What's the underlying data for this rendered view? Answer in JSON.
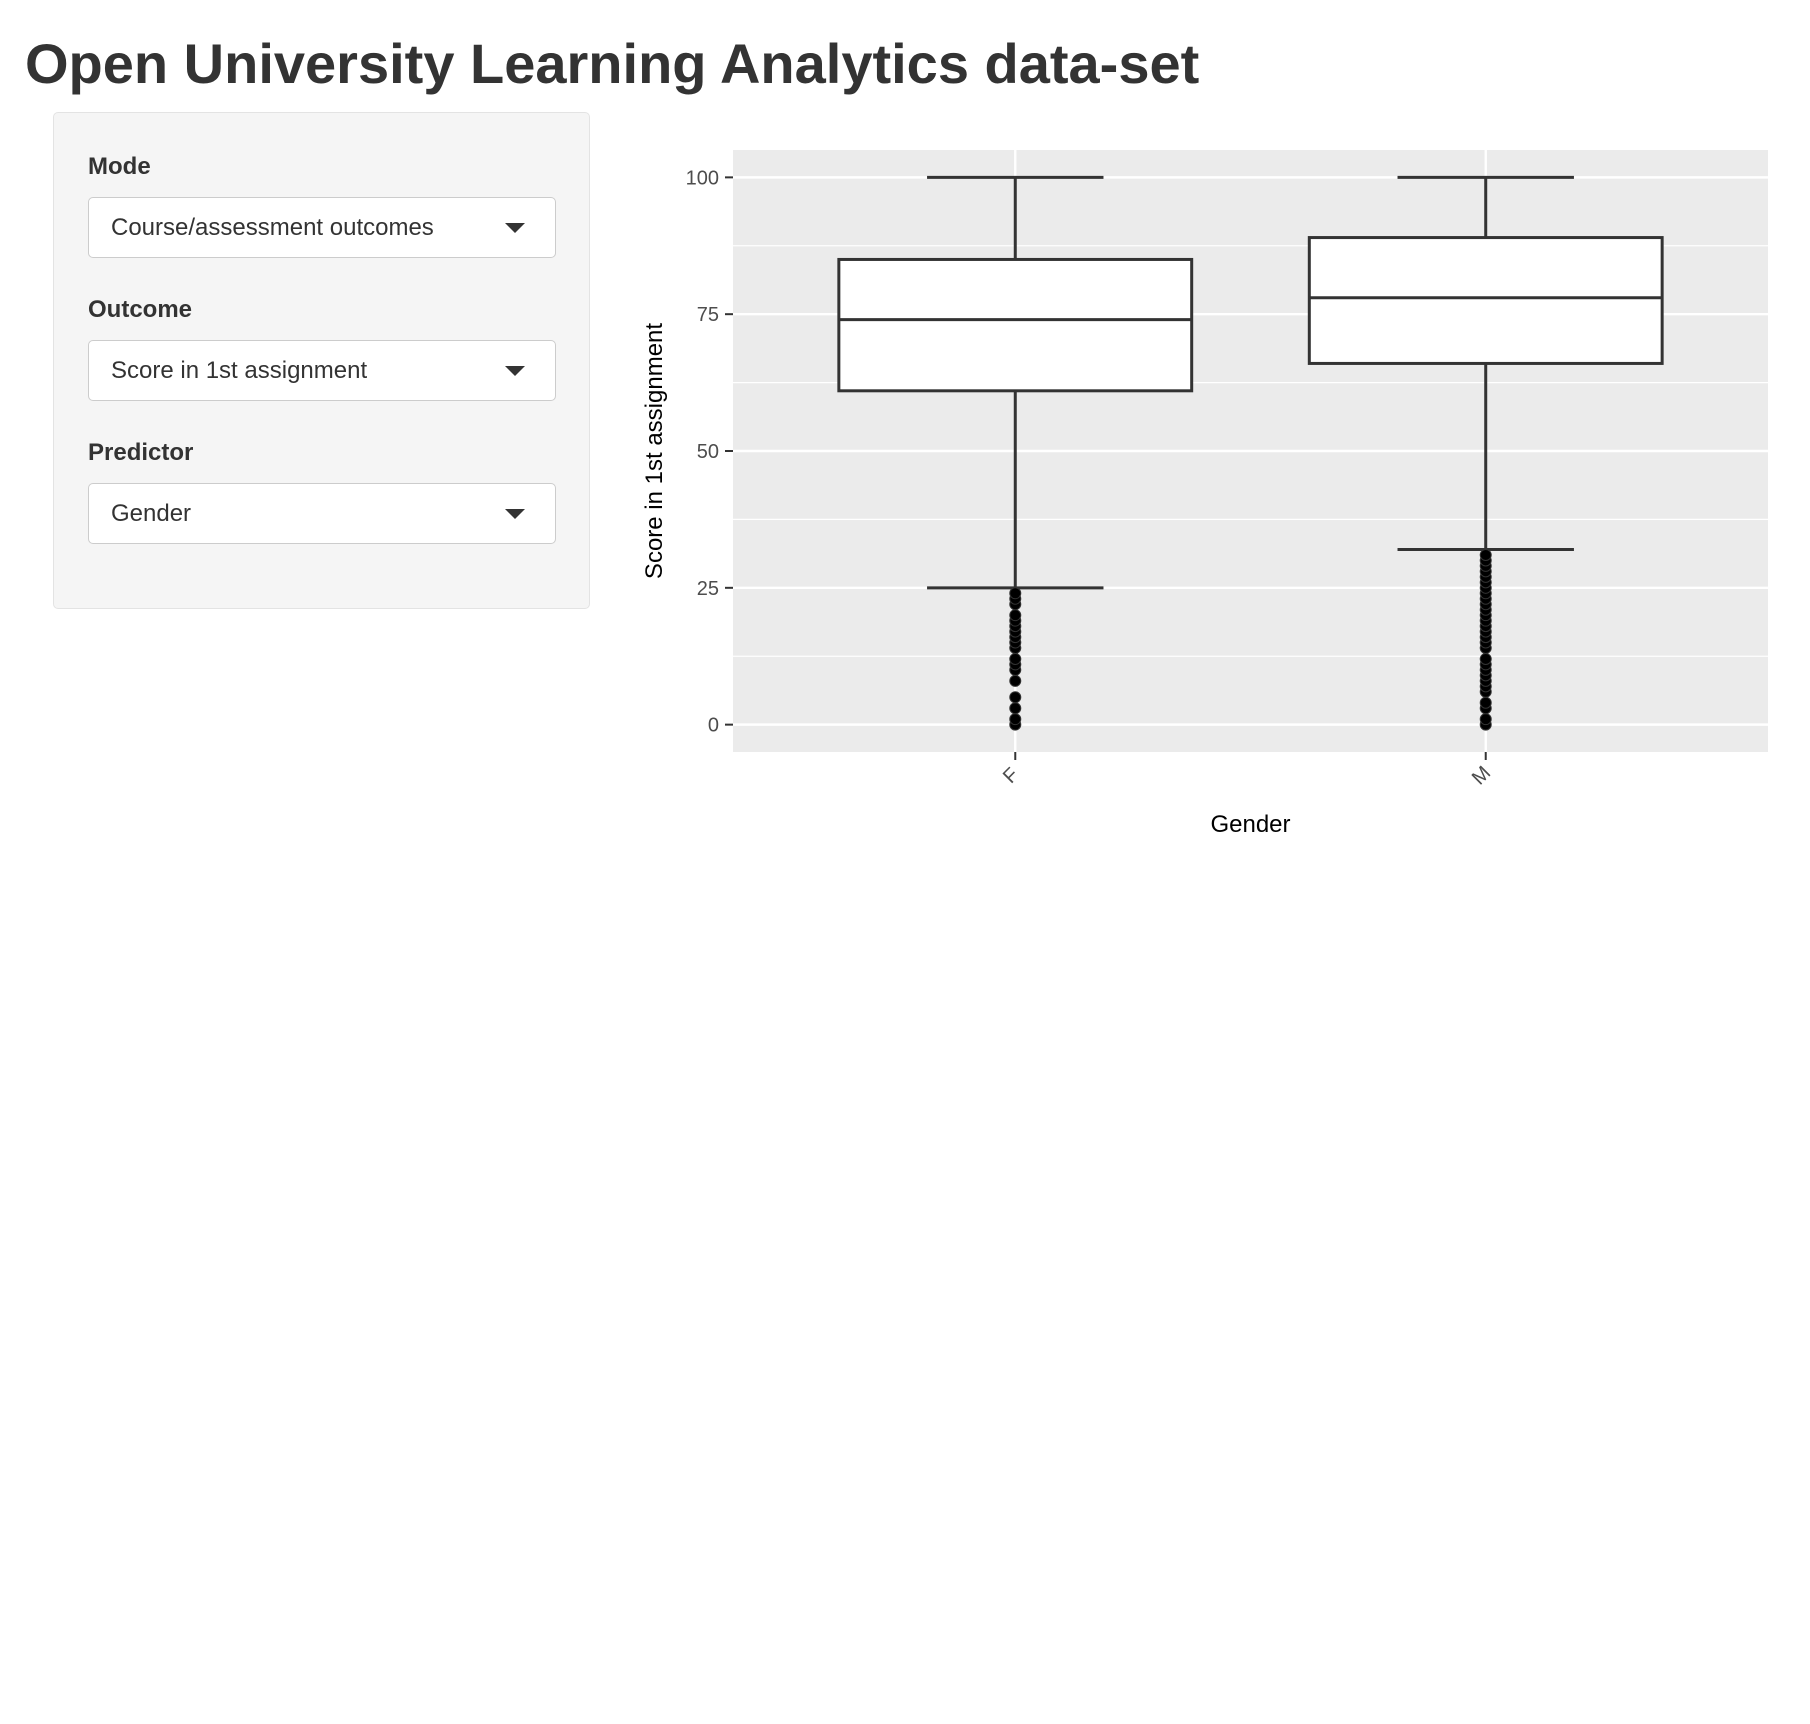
{
  "page": {
    "title": "Open University Learning Analytics data-set"
  },
  "sidebar": {
    "mode": {
      "label": "Mode",
      "value": "Course/assessment outcomes"
    },
    "outcome": {
      "label": "Outcome",
      "value": "Score in 1st assignment"
    },
    "predictor": {
      "label": "Predictor",
      "value": "Gender"
    }
  },
  "icons": {
    "dropdown": "chevron-down-icon"
  },
  "chart_data": {
    "type": "boxplot",
    "xlabel": "Gender",
    "ylabel": "Score in 1st assignment",
    "ylim": [
      -5,
      105
    ],
    "yticks": [
      0,
      25,
      50,
      75,
      100
    ],
    "grid": true,
    "legend": "none",
    "panel_color": "#ebebeb",
    "categories": [
      "F",
      "M"
    ],
    "boxes": [
      {
        "category": "F",
        "whisker_low": 25,
        "q1": 61,
        "median": 74,
        "q3": 85,
        "whisker_high": 100,
        "outliers": [
          0,
          1,
          3,
          5,
          8,
          10,
          11,
          12,
          14,
          15,
          16,
          17,
          18,
          19,
          20,
          22,
          23,
          24
        ]
      },
      {
        "category": "M",
        "whisker_low": 32,
        "q1": 66,
        "median": 78,
        "q3": 89,
        "whisker_high": 100,
        "outliers": [
          0,
          1,
          3,
          4,
          6,
          7,
          8,
          9,
          10,
          11,
          12,
          14,
          15,
          16,
          17,
          18,
          19,
          20,
          21,
          22,
          23,
          24,
          25,
          26,
          27,
          28,
          29,
          30,
          31
        ]
      }
    ]
  }
}
